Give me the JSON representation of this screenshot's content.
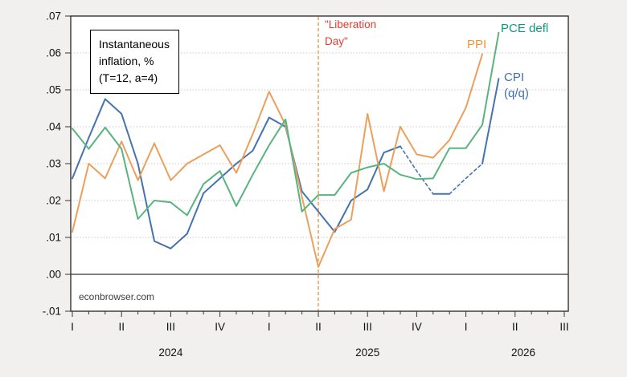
{
  "annotation_box": {
    "line1": "Instantaneous",
    "line2": "inflation, %",
    "line3": "(T=12, a=4)"
  },
  "event_label": {
    "line1": "\"Liberation",
    "line2": "Day\""
  },
  "series_labels": {
    "ppi": "PPI",
    "pce": "PCE defl",
    "cpi_line1": "CPI",
    "cpi_line2": "(q/q)"
  },
  "source_note": "econbrowser.com",
  "colors": {
    "cpi_line": "#4673AE",
    "cpi_label": "#3E6FB5",
    "ppi_line": "#EBA05C",
    "ppi_label": "#F0943A",
    "pce_line": "#59B47E",
    "pce_label": "#0E9678",
    "event_line": "#F0953C",
    "event_text": "#E8392F",
    "grid": "#c9c9c9",
    "zero_line": "#000000",
    "frame": "#333333"
  },
  "chart_data": {
    "type": "line",
    "title_note": "Instantaneous inflation, % (T=12, a=4)",
    "x_unit": "month",
    "months": [
      "2024-01",
      "2024-02",
      "2024-03",
      "2024-04",
      "2024-05",
      "2024-06",
      "2024-07",
      "2024-08",
      "2024-09",
      "2024-10",
      "2024-11",
      "2024-12",
      "2025-01",
      "2025-02",
      "2025-03",
      "2025-04",
      "2025-05",
      "2025-06",
      "2025-07",
      "2025-08",
      "2025-09",
      "2025-10",
      "2025-11",
      "2025-12",
      "2026-01",
      "2026-02",
      "2026-03"
    ],
    "ylim": [
      -0.01,
      0.07
    ],
    "grid": "horizontal-dotted",
    "y_ticks": {
      "labels": [
        ".07",
        ".06",
        ".05",
        ".04",
        ".03",
        ".02",
        ".01",
        ".00",
        "-.01"
      ],
      "values": [
        0.07,
        0.06,
        0.05,
        0.04,
        0.03,
        0.02,
        0.01,
        0.0,
        -0.01
      ]
    },
    "x_axis": {
      "quarter_labels": [
        "I",
        "II",
        "III",
        "IV",
        "I",
        "II",
        "III",
        "IV",
        "I",
        "II",
        "III"
      ],
      "quarter_months": [
        0,
        3,
        6,
        9,
        12,
        15,
        18,
        21,
        24,
        27,
        30
      ],
      "minor_tick_every_month": true,
      "year_labels": [
        {
          "text": "2024",
          "month": 6
        },
        {
          "text": "2025",
          "month": 18
        },
        {
          "text": "2026",
          "month": 27.5
        }
      ]
    },
    "event_line": {
      "label": "Liberation Day",
      "month_index": 15,
      "style": "dashed-vertical"
    },
    "series": [
      {
        "name": "CPI (q/q)",
        "color_key": "cpi_line",
        "values": [
          0.026,
          0.037,
          0.0475,
          0.0435,
          0.03,
          0.009,
          0.007,
          0.011,
          0.022,
          0.026,
          0.03,
          0.0335,
          0.0425,
          0.04,
          0.0225,
          0.017,
          0.0115,
          0.02,
          0.023,
          0.033,
          0.0347,
          0.028,
          0.0218,
          0.0218,
          0.026,
          0.03,
          0.053
        ],
        "segments": [
          {
            "from": 0,
            "to": 20,
            "style": "solid"
          },
          {
            "from": 20,
            "to": 22,
            "style": "dashed"
          },
          {
            "from": 22,
            "to": 23,
            "style": "solid"
          },
          {
            "from": 23,
            "to": 25,
            "style": "dashed"
          },
          {
            "from": 25,
            "to": 26,
            "style": "solid"
          }
        ]
      },
      {
        "name": "PPI",
        "color_key": "ppi_line",
        "values": [
          0.0115,
          0.03,
          0.026,
          0.036,
          0.0255,
          0.0355,
          0.0255,
          0.03,
          0.0325,
          0.035,
          0.0275,
          0.038,
          0.0495,
          0.0405,
          0.021,
          0.002,
          0.0123,
          0.0148,
          0.0435,
          0.0225,
          0.04,
          0.0325,
          0.0316,
          0.0364,
          0.0452,
          0.0597,
          null
        ],
        "segments": [
          {
            "from": 0,
            "to": 25,
            "style": "solid"
          }
        ]
      },
      {
        "name": "PCE deflator",
        "color_key": "pce_line",
        "values": [
          0.0395,
          0.034,
          0.0398,
          0.034,
          0.015,
          0.02,
          0.0195,
          0.016,
          0.0245,
          0.028,
          0.0185,
          0.027,
          0.035,
          0.042,
          0.017,
          0.0215,
          0.0215,
          0.0275,
          0.029,
          0.03,
          0.027,
          0.0258,
          0.026,
          0.0342,
          0.0342,
          0.0405,
          0.0655
        ],
        "segments": [
          {
            "from": 0,
            "to": 26,
            "style": "solid"
          }
        ]
      }
    ]
  }
}
